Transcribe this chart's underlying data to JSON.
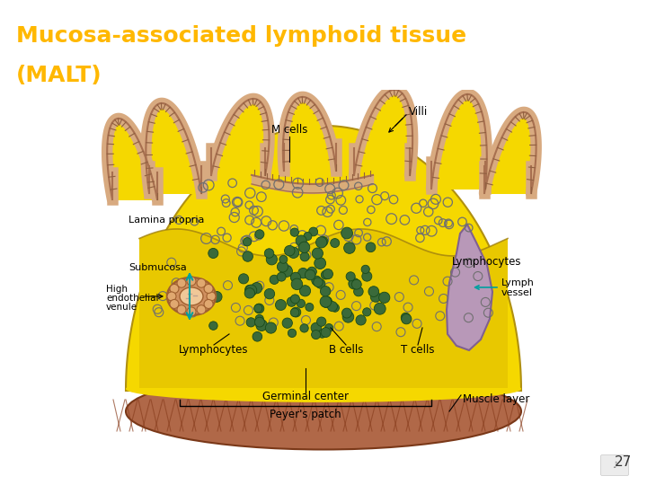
{
  "title_line1": "Mucosa-associated lymphoid tissue",
  "title_line2": "(MALT)",
  "title_color": "#FFB800",
  "title_bg": "#000000",
  "slide_bg": "#FFFFFF",
  "page_number": "27",
  "labels": {
    "villi": "Villi",
    "m_cells": "M cells",
    "lamina_propria": "Lamina propria",
    "submucosa": "Submucosa",
    "high_endothelial_1": "High",
    "high_endothelial_2": "endothelial",
    "high_endothelial_3": "venule",
    "lymphocytes_left": "Lymphocytes",
    "b_cells": "B cells",
    "t_cells": "T cells",
    "lymphocytes_right": "Lymphocytes",
    "lymph_vessel_1": "Lymph",
    "lymph_vessel_2": "vessel",
    "germinal_center": "Germinal center",
    "peyers_patch": "Peyer's patch",
    "muscle_layer": "Muscle layer"
  },
  "colors": {
    "yellow_tissue": "#F5D800",
    "epithelium": "#D8AA80",
    "lymph_vessel_fill": "#B898B8",
    "hev_fill": "#D89860",
    "hev_border": "#C07840",
    "b_cells_fill": "#3A6A3A",
    "muscle_fill": "#B06848",
    "muscle_stripe": "#8B4020",
    "label_text": "#000000",
    "arrow_teal": "#00A0A0"
  }
}
